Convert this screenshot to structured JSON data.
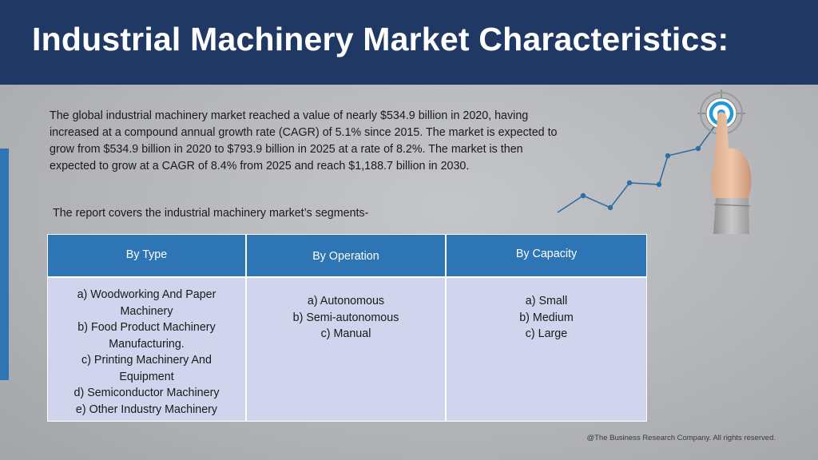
{
  "header": {
    "title": "Industrial Machinery Market Characteristics:"
  },
  "intro": {
    "paragraph": "The global industrial machinery market reached a value of nearly $534.9 billion in 2020, having increased at a compound annual growth rate (CAGR) of 5.1% since 2015. The market is expected to grow from $534.9 billion in 2020 to $793.9 billion in 2025 at a rate of 8.2%. The market is then expected to grow at a CAGR of 8.4% from 2025 and reach $1,188.7 billion in 2030.",
    "segments_line": "The report covers the industrial machinery market’s segments-"
  },
  "table": {
    "headers": [
      "By Type",
      "By Operation",
      "By Capacity"
    ],
    "columns": [
      [
        "a) Woodworking And Paper Machinery",
        "b) Food Product Machinery Manufacturing.",
        "c) Printing Machinery And Equipment",
        "d) Semiconductor Machinery",
        "e) Other Industry Machinery"
      ],
      [
        "a) Autonomous",
        "b) Semi-autonomous",
        "c) Manual"
      ],
      [
        "a) Small",
        "b) Medium",
        "c) Large"
      ]
    ]
  },
  "footer": {
    "copyright": "@The Business Research Company. All rights reserved."
  },
  "colors": {
    "header_bg": "#1f3864",
    "accent": "#2e75b6",
    "table_body": "#d0d4ec",
    "trend_line": "#2e6fa3"
  },
  "icons": [
    "growth-chart-icon",
    "target-icon",
    "pointing-hand-icon"
  ]
}
